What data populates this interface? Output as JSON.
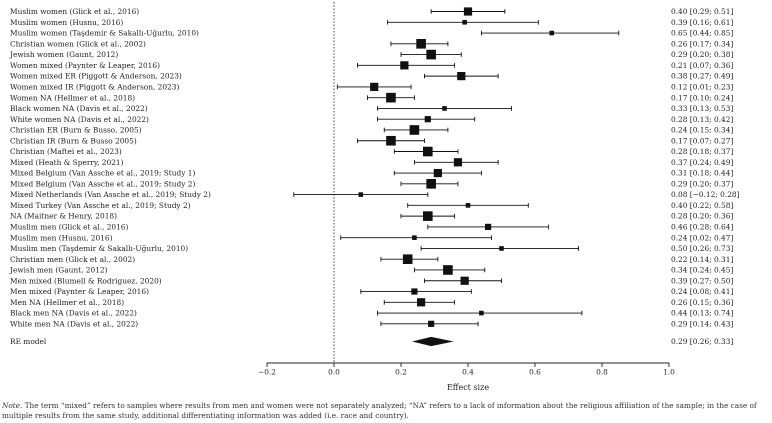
{
  "chart_data": {
    "type": "forest",
    "xlabel": "Effect size",
    "xlim": [
      -0.3,
      1.0
    ],
    "xticks": [
      -0.2,
      0.0,
      0.2,
      0.4,
      0.6,
      0.8,
      1.0
    ],
    "xtick_labels": [
      "−0.2",
      "0.0",
      "0.2",
      "0.4",
      "0.6",
      "0.8",
      "1.0"
    ],
    "reference_line": 0,
    "studies": [
      {
        "label": "Muslim women (Glick et al., 2016)",
        "est": 0.4,
        "lo": 0.29,
        "hi": 0.51,
        "text": "0.40 [0.29; 0.51]",
        "weight": 3
      },
      {
        "label": "Muslim women (Husnu, 2016)",
        "est": 0.39,
        "lo": 0.16,
        "hi": 0.61,
        "text": "0.39 [0.16; 0.61]",
        "weight": 1
      },
      {
        "label": "Muslim women (Taşdemir & Sakallı-Uğurlu, 2010)",
        "est": 0.65,
        "lo": 0.44,
        "hi": 0.85,
        "text": "0.65 [0.44; 0.85]",
        "weight": 1
      },
      {
        "label": "Christian women (Glick et al., 2002)",
        "est": 0.26,
        "lo": 0.17,
        "hi": 0.34,
        "text": "0.26 [0.17; 0.34]",
        "weight": 4
      },
      {
        "label": "Jewish women (Gaunt, 2012)",
        "est": 0.29,
        "lo": 0.2,
        "hi": 0.38,
        "text": "0.29 [0.20; 0.38]",
        "weight": 4
      },
      {
        "label": "Women mixed (Paynter & Leaper, 2016)",
        "est": 0.21,
        "lo": 0.07,
        "hi": 0.36,
        "text": "0.21 [0.07; 0.36]",
        "weight": 3
      },
      {
        "label": "Women mixed ER (Piggott & Anderson, 2023)",
        "est": 0.38,
        "lo": 0.27,
        "hi": 0.49,
        "text": "0.38 [0.27; 0.49]",
        "weight": 3
      },
      {
        "label": "Women mixed IR (Piggott & Anderson, 2023)",
        "est": 0.12,
        "lo": 0.01,
        "hi": 0.23,
        "text": "0.12 [0.01; 0.23]",
        "weight": 3
      },
      {
        "label": "Women NA (Hellmer et al., 2018)",
        "est": 0.17,
        "lo": 0.1,
        "hi": 0.24,
        "text": "0.17 [0.10; 0.24]",
        "weight": 4
      },
      {
        "label": "Black women NA (Davis et al., 2022)",
        "est": 0.33,
        "lo": 0.13,
        "hi": 0.53,
        "text": "0.33 [0.13; 0.53]",
        "weight": 1
      },
      {
        "label": "White women NA (Davis et al., 2022)",
        "est": 0.28,
        "lo": 0.13,
        "hi": 0.42,
        "text": "0.28 [0.13; 0.42]",
        "weight": 2
      },
      {
        "label": "Christian ER (Burn & Busso, 2005)",
        "est": 0.24,
        "lo": 0.15,
        "hi": 0.34,
        "text": "0.24 [0.15; 0.34]",
        "weight": 4
      },
      {
        "label": "Christian IR (Burn & Busso 2005)",
        "est": 0.17,
        "lo": 0.07,
        "hi": 0.27,
        "text": "0.17 [0.07; 0.27]",
        "weight": 4
      },
      {
        "label": "Christian (Maftei et al., 2023)",
        "est": 0.28,
        "lo": 0.18,
        "hi": 0.37,
        "text": "0.28 [0.18; 0.37]",
        "weight": 4
      },
      {
        "label": "Mixed (Heath & Sperry, 2021)",
        "est": 0.37,
        "lo": 0.24,
        "hi": 0.49,
        "text": "0.37 [0.24; 0.49]",
        "weight": 3
      },
      {
        "label": "Mixed Belgium (Van Assche et al., 2019; Study 1)",
        "est": 0.31,
        "lo": 0.18,
        "hi": 0.44,
        "text": "0.31 [0.18; 0.44]",
        "weight": 3
      },
      {
        "label": "Mixed Belgium (Van Assche et al., 2019; Study 2)",
        "est": 0.29,
        "lo": 0.2,
        "hi": 0.37,
        "text": "0.29 [0.20; 0.37]",
        "weight": 4
      },
      {
        "label": "Mixed Netherlands (Van Assche et al., 2019; Study 2)",
        "est": 0.08,
        "lo": -0.12,
        "hi": 0.28,
        "text": "0.08 [−0.12; 0.28]",
        "weight": 1
      },
      {
        "label": "Mixed Turkey (Van Assche et al., 2019; Study 2)",
        "est": 0.4,
        "lo": 0.22,
        "hi": 0.58,
        "text": "0.40 [0.22; 0.58]",
        "weight": 1
      },
      {
        "label": "NA (Maitner & Henry, 2018)",
        "est": 0.28,
        "lo": 0.2,
        "hi": 0.36,
        "text": "0.28 [0.20; 0.36]",
        "weight": 4
      },
      {
        "label": "Muslim men (Glick et al., 2016)",
        "est": 0.46,
        "lo": 0.28,
        "hi": 0.64,
        "text": "0.46 [0.28; 0.64]",
        "weight": 2
      },
      {
        "label": "Muslim men (Husnu, 2016)",
        "est": 0.24,
        "lo": 0.02,
        "hi": 0.47,
        "text": "0.24 [0.02; 0.47]",
        "weight": 1
      },
      {
        "label": "Muslim men (Taşdemir & Sakallı-Uğurlu, 2010)",
        "est": 0.5,
        "lo": 0.26,
        "hi": 0.73,
        "text": "0.50 [0.26; 0.73]",
        "weight": 1
      },
      {
        "label": "Christian men (Glick et al., 2002)",
        "est": 0.22,
        "lo": 0.14,
        "hi": 0.31,
        "text": "0.22 [0.14; 0.31]",
        "weight": 4
      },
      {
        "label": "Jewish men (Gaunt, 2012)",
        "est": 0.34,
        "lo": 0.24,
        "hi": 0.45,
        "text": "0.34 [0.24; 0.45]",
        "weight": 4
      },
      {
        "label": "Men mixed (Blumell & Rodriguez, 2020)",
        "est": 0.39,
        "lo": 0.27,
        "hi": 0.5,
        "text": "0.39 [0.27; 0.50]",
        "weight": 3
      },
      {
        "label": "Men mixed (Paynter & Leaper, 2016)",
        "est": 0.24,
        "lo": 0.08,
        "hi": 0.41,
        "text": "0.24 [0.08; 0.41]",
        "weight": 2
      },
      {
        "label": "Men NA (Hellmer et al., 2018)",
        "est": 0.26,
        "lo": 0.15,
        "hi": 0.36,
        "text": "0.26 [0.15; 0.36]",
        "weight": 3
      },
      {
        "label": "Black men NA (Davis et al., 2022)",
        "est": 0.44,
        "lo": 0.13,
        "hi": 0.74,
        "text": "0.44 [0.13; 0.74]",
        "weight": 1
      },
      {
        "label": "White men NA (Davis et al., 2022)",
        "est": 0.29,
        "lo": 0.14,
        "hi": 0.43,
        "text": "0.29 [0.14; 0.43]",
        "weight": 2
      }
    ],
    "summary": {
      "label": "RE model",
      "est": 0.29,
      "lo": 0.26,
      "hi": 0.33,
      "text": "0.29 [0.26; 0.33]"
    }
  },
  "note": {
    "prefix": "Note.",
    "text": "The term “mixed” refers to samples where results from men and women were not separately analyzed; “NA” refers to a lack of information about the religious affiliation of the sample; in the case of multiple results from the same study, additional differentiating information was added (i.e. race and country)."
  }
}
